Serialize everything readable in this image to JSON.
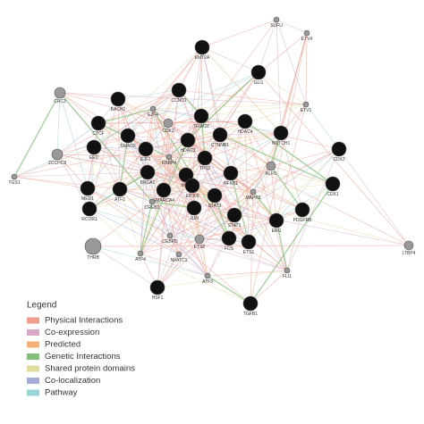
{
  "network": {
    "nodes": [
      {
        "label": "SUFU"
      },
      {
        "label": "ETV4"
      },
      {
        "label": "KMT2A"
      },
      {
        "label": "GLI1"
      },
      {
        "label": "CRC3"
      },
      {
        "label": "BACH1"
      },
      {
        "label": "CCND1"
      },
      {
        "label": "E2F4"
      },
      {
        "label": "CDK2"
      },
      {
        "label": "TRIM28"
      },
      {
        "label": "HDAC4"
      },
      {
        "label": "ETV1"
      },
      {
        "label": "CTCF"
      },
      {
        "label": "CTNNB1"
      },
      {
        "label": "NOTCH1"
      },
      {
        "label": "SMAD2"
      },
      {
        "label": "HDAC1"
      },
      {
        "label": "E2F1"
      },
      {
        "label": "EED"
      },
      {
        "label": "ZCCHC8"
      },
      {
        "label": "RBBP4"
      },
      {
        "label": "TP53"
      },
      {
        "label": "CDX2"
      },
      {
        "label": "KLF5"
      },
      {
        "label": "TGS1"
      },
      {
        "label": "BRCA1"
      },
      {
        "label": "MYC"
      },
      {
        "label": "NFKB1"
      },
      {
        "label": "EP300"
      },
      {
        "label": "CDX1"
      },
      {
        "label": "MED1"
      },
      {
        "label": "ATF2"
      },
      {
        "label": "SMARCA4"
      },
      {
        "label": "STAT3"
      },
      {
        "label": "MAPK8"
      },
      {
        "label": "RCOR1"
      },
      {
        "label": "CREB1"
      },
      {
        "label": "JUN"
      },
      {
        "label": "STAT1"
      },
      {
        "label": "PDGFRB"
      },
      {
        "label": "ERG"
      },
      {
        "label": "CEBPD"
      },
      {
        "label": "ETS2"
      },
      {
        "label": "FOS"
      },
      {
        "label": "ETS1"
      },
      {
        "label": "THRB"
      },
      {
        "label": "ATF4"
      },
      {
        "label": "NFATC1"
      },
      {
        "label": "LTBP4"
      },
      {
        "label": "FLI1"
      },
      {
        "label": "ATF3"
      },
      {
        "label": "HSF1"
      },
      {
        "label": "TGFB1"
      }
    ],
    "legend": {
      "title": "Legend",
      "items": [
        {
          "label": "Physical Interactions",
          "color": "#f09c8f"
        },
        {
          "label": "Co-expression",
          "color": "#d9a9c8"
        },
        {
          "label": "Predicted",
          "color": "#f4b078"
        },
        {
          "label": "Genetic Interactions",
          "color": "#82c07a"
        },
        {
          "label": "Shared protein domains",
          "color": "#e0dca0"
        },
        {
          "label": "Co-localization",
          "color": "#a4acd8"
        },
        {
          "label": "Pathway",
          "color": "#99d4d4"
        }
      ]
    }
  }
}
